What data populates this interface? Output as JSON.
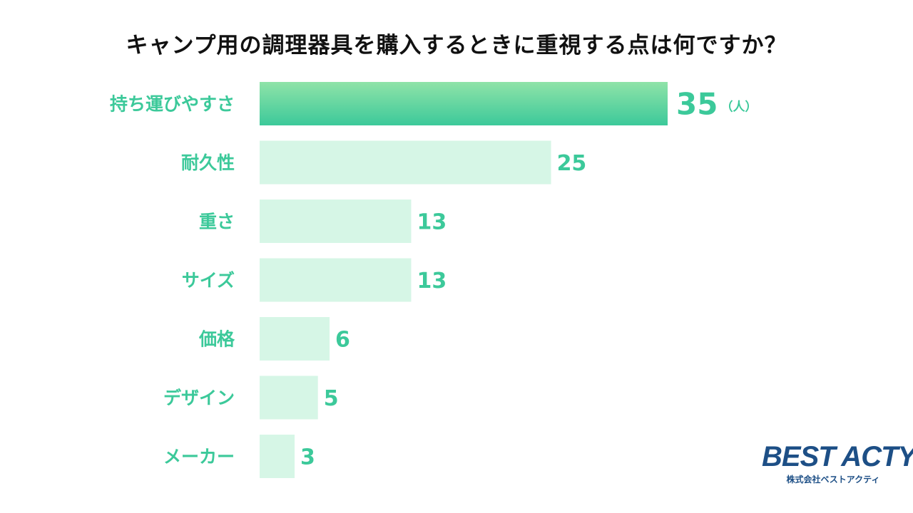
{
  "chart_data": {
    "type": "bar",
    "orientation": "horizontal",
    "title": "キャンプ用の調理器具を購入するときに重視する点は何ですか？",
    "unit": "（人）",
    "categories": [
      "持ち運びやすさ",
      "耐久性",
      "重さ",
      "サイズ",
      "価格",
      "デザイン",
      "メーカー"
    ],
    "values": [
      35,
      25,
      13,
      13,
      6,
      5,
      3
    ],
    "value_labels": [
      "35",
      "25",
      "13",
      "13",
      "6",
      "5",
      "3"
    ],
    "xlim": [
      0,
      35
    ],
    "grid": false,
    "legend": "none"
  },
  "colors": {
    "label": "#3cc99a",
    "bar_highlight_top": "#8fe3a8",
    "bar_highlight_bottom": "#3cc99a",
    "bar_light": "#d6f6e6",
    "title": "#111111",
    "logo": "#1d4f86"
  },
  "logo": {
    "main": "BEST ACTY",
    "sub": "株式会社ベストアクティ"
  }
}
